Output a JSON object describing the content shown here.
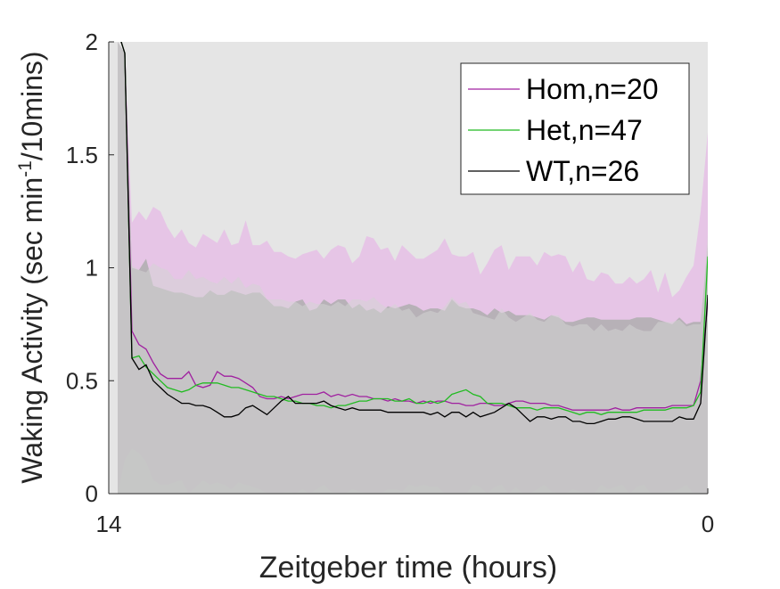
{
  "chart_data": {
    "type": "line",
    "title": "",
    "xlabel": "Zeitgeber time (hours)",
    "ylabel_main": "Waking Activity (sec min",
    "ylabel_sup": "-1",
    "ylabel_tail": "/10mins)",
    "x_tick_labels": [
      "14",
      "0"
    ],
    "y_ticks": [
      0,
      0.5,
      1,
      1.5,
      2
    ],
    "y_tick_labels": [
      "0",
      "0.5",
      "1",
      "1.5",
      "2"
    ],
    "ylim": [
      0,
      2
    ],
    "x_points": 84,
    "grid": false,
    "background_color": "#e5e5e5",
    "legend_position": "top-right",
    "series": [
      {
        "name": "Hom,n=20",
        "color": "#a020a0",
        "band_color": "#e6c0e6",
        "values": [
          2.05,
          1.95,
          0.72,
          0.66,
          0.64,
          0.58,
          0.53,
          0.51,
          0.51,
          0.51,
          0.54,
          0.48,
          0.47,
          0.48,
          0.54,
          0.52,
          0.52,
          0.51,
          0.49,
          0.47,
          0.43,
          0.42,
          0.42,
          0.43,
          0.42,
          0.43,
          0.44,
          0.44,
          0.44,
          0.45,
          0.43,
          0.44,
          0.43,
          0.44,
          0.43,
          0.43,
          0.42,
          0.42,
          0.41,
          0.42,
          0.41,
          0.41,
          0.4,
          0.41,
          0.4,
          0.41,
          0.41,
          0.4,
          0.4,
          0.39,
          0.39,
          0.4,
          0.4,
          0.39,
          0.39,
          0.4,
          0.41,
          0.41,
          0.4,
          0.4,
          0.4,
          0.39,
          0.39,
          0.38,
          0.37,
          0.37,
          0.37,
          0.37,
          0.37,
          0.37,
          0.38,
          0.37,
          0.37,
          0.38,
          0.38,
          0.38,
          0.38,
          0.38,
          0.39,
          0.39,
          0.39,
          0.39,
          0.5,
          0.85
        ],
        "band_upper": [
          2.0,
          1.95,
          1.2,
          1.25,
          1.21,
          1.27,
          1.25,
          1.18,
          1.13,
          1.17,
          1.11,
          1.09,
          1.15,
          1.13,
          1.11,
          1.17,
          1.1,
          1.11,
          1.21,
          1.1,
          1.1,
          1.12,
          1.07,
          1.07,
          1.05,
          1.04,
          1.06,
          1.07,
          1.08,
          1.04,
          1.08,
          1.1,
          1.09,
          1.02,
          1.05,
          1.14,
          1.13,
          1.08,
          1.09,
          1.03,
          1.1,
          1.07,
          1.04,
          1.04,
          1.06,
          1.08,
          1.13,
          1.06,
          1.05,
          1.05,
          1.07,
          0.97,
          1.02,
          1.08,
          1.1,
          0.99,
          1.05,
          1.05,
          1.05,
          1.01,
          1.07,
          1.05,
          1.06,
          1.05,
          0.98,
          1.03,
          0.95,
          0.94,
          0.98,
          0.97,
          0.93,
          0.93,
          0.96,
          0.93,
          0.95,
          0.99,
          0.89,
          0.98,
          0.87,
          0.9,
          0.96,
          1.01,
          1.25,
          1.6
        ],
        "band_lower": [
          0.0,
          0.15,
          0.2,
          0.18,
          0.14,
          0.06,
          0.04,
          0.04,
          0.05,
          0.06,
          0.0,
          0.03,
          0.06,
          0.04,
          0.05,
          0.04,
          0.02,
          0.05,
          0.04,
          0.03,
          0.02,
          0.0,
          0.0,
          0.0,
          0.01,
          0.0,
          0.02,
          0.0,
          0.02,
          0.04,
          0.01,
          0.0,
          0.0,
          0.02,
          0.01,
          0.0,
          0.0,
          0.0,
          0.02,
          0.02,
          0.01,
          0.04,
          0.03,
          0.04,
          0.03,
          0.03,
          0.0,
          0.0,
          0.0,
          0.0,
          0.04,
          0.03,
          0.0,
          0.03,
          0.04,
          0.0,
          0.03,
          0.0,
          0.0,
          0.02,
          0.04,
          0.01,
          0.0,
          0.0,
          0.02,
          0.01,
          0.0,
          0.0,
          0.04,
          0.02,
          0.03,
          0.04,
          0.0,
          0.03,
          0.04,
          0.0,
          0.0,
          0.01,
          0.01,
          0.02,
          0.04,
          0.0,
          0.0,
          0.0
        ]
      },
      {
        "name": "Het,n=47",
        "color": "#22bb22",
        "band_color": "#d3d3d3",
        "values": [
          2.05,
          1.95,
          0.6,
          0.61,
          0.56,
          0.53,
          0.5,
          0.47,
          0.46,
          0.45,
          0.46,
          0.48,
          0.49,
          0.49,
          0.49,
          0.48,
          0.47,
          0.47,
          0.46,
          0.45,
          0.44,
          0.43,
          0.43,
          0.42,
          0.41,
          0.41,
          0.4,
          0.4,
          0.39,
          0.39,
          0.38,
          0.39,
          0.39,
          0.4,
          0.41,
          0.41,
          0.42,
          0.42,
          0.42,
          0.41,
          0.41,
          0.42,
          0.4,
          0.4,
          0.41,
          0.4,
          0.41,
          0.44,
          0.45,
          0.46,
          0.44,
          0.43,
          0.4,
          0.4,
          0.4,
          0.39,
          0.38,
          0.38,
          0.38,
          0.37,
          0.38,
          0.38,
          0.38,
          0.37,
          0.36,
          0.35,
          0.36,
          0.36,
          0.35,
          0.36,
          0.36,
          0.36,
          0.36,
          0.36,
          0.37,
          0.37,
          0.37,
          0.37,
          0.38,
          0.38,
          0.38,
          0.39,
          0.45,
          1.05
        ],
        "band_upper": [
          2.0,
          1.95,
          1.01,
          0.99,
          0.98,
          1.02,
          1.0,
          0.99,
          0.95,
          0.95,
          0.99,
          0.95,
          0.96,
          0.94,
          0.93,
          0.96,
          0.93,
          0.96,
          0.91,
          0.93,
          0.92,
          0.86,
          0.86,
          0.86,
          0.85,
          0.85,
          0.83,
          0.85,
          0.84,
          0.84,
          0.83,
          0.85,
          0.83,
          0.86,
          0.86,
          0.85,
          0.87,
          0.84,
          0.82,
          0.84,
          0.81,
          0.82,
          0.78,
          0.8,
          0.81,
          0.8,
          0.83,
          0.87,
          0.84,
          0.85,
          0.8,
          0.79,
          0.78,
          0.77,
          0.82,
          0.78,
          0.76,
          0.78,
          0.8,
          0.77,
          0.76,
          0.79,
          0.79,
          0.75,
          0.74,
          0.75,
          0.75,
          0.72,
          0.75,
          0.72,
          0.73,
          0.72,
          0.75,
          0.73,
          0.72,
          0.72,
          0.76,
          0.76,
          0.76,
          0.77,
          0.74,
          0.75,
          0.75,
          1.15
        ],
        "band_lower": [
          0.0,
          0.0,
          0.0,
          0.0,
          0.0,
          0.0,
          0.0,
          0.0,
          0.0,
          0.0,
          0.0,
          0.0,
          0.0,
          0.0,
          0.0,
          0.0,
          0.0,
          0.0,
          0.0,
          0.0,
          0.0,
          0.0,
          0.0,
          0.0,
          0.0,
          0.0,
          0.0,
          0.0,
          0.0,
          0.0,
          0.0,
          0.0,
          0.0,
          0.0,
          0.0,
          0.0,
          0.0,
          0.0,
          0.0,
          0.0,
          0.0,
          0.0,
          0.0,
          0.0,
          0.0,
          0.0,
          0.0,
          0.0,
          0.0,
          0.0,
          0.0,
          0.0,
          0.0,
          0.0,
          0.0,
          0.0,
          0.0,
          0.0,
          0.0,
          0.0,
          0.0,
          0.0,
          0.0,
          0.0,
          0.0,
          0.0,
          0.0,
          0.0,
          0.0,
          0.0,
          0.0,
          0.0,
          0.0,
          0.0,
          0.0,
          0.0,
          0.0,
          0.0,
          0.0,
          0.0,
          0.0,
          0.0,
          0.0,
          0.0
        ]
      },
      {
        "name": "WT,n=26",
        "color": "#000000",
        "band_color": "#a7aaa7",
        "values": [
          2.05,
          1.95,
          0.6,
          0.55,
          0.57,
          0.5,
          0.47,
          0.44,
          0.42,
          0.4,
          0.4,
          0.39,
          0.39,
          0.38,
          0.36,
          0.34,
          0.34,
          0.35,
          0.38,
          0.39,
          0.37,
          0.35,
          0.38,
          0.41,
          0.43,
          0.4,
          0.4,
          0.4,
          0.4,
          0.41,
          0.39,
          0.38,
          0.37,
          0.38,
          0.37,
          0.37,
          0.37,
          0.37,
          0.36,
          0.36,
          0.36,
          0.36,
          0.36,
          0.36,
          0.35,
          0.36,
          0.34,
          0.36,
          0.36,
          0.34,
          0.36,
          0.34,
          0.35,
          0.36,
          0.38,
          0.4,
          0.38,
          0.35,
          0.32,
          0.34,
          0.34,
          0.33,
          0.34,
          0.34,
          0.32,
          0.32,
          0.31,
          0.31,
          0.32,
          0.33,
          0.33,
          0.34,
          0.34,
          0.33,
          0.32,
          0.32,
          0.32,
          0.32,
          0.32,
          0.34,
          0.33,
          0.33,
          0.4,
          0.88
        ],
        "band_upper": [
          2.0,
          1.95,
          1.0,
          0.99,
          1.04,
          0.92,
          0.91,
          0.9,
          0.89,
          0.89,
          0.88,
          0.87,
          0.87,
          0.9,
          0.88,
          0.88,
          0.9,
          0.89,
          0.88,
          0.89,
          0.89,
          0.86,
          0.83,
          0.83,
          0.82,
          0.85,
          0.86,
          0.81,
          0.82,
          0.86,
          0.84,
          0.86,
          0.86,
          0.82,
          0.84,
          0.81,
          0.82,
          0.8,
          0.83,
          0.82,
          0.83,
          0.84,
          0.83,
          0.81,
          0.82,
          0.82,
          0.81,
          0.86,
          0.83,
          0.82,
          0.82,
          0.81,
          0.79,
          0.82,
          0.8,
          0.81,
          0.79,
          0.79,
          0.79,
          0.78,
          0.77,
          0.79,
          0.78,
          0.76,
          0.76,
          0.77,
          0.78,
          0.78,
          0.77,
          0.77,
          0.77,
          0.77,
          0.77,
          0.78,
          0.78,
          0.78,
          0.77,
          0.76,
          0.75,
          0.78,
          0.75,
          0.76,
          0.76,
          1.1
        ],
        "band_lower": [
          0.0,
          0.0,
          0.0,
          0.0,
          0.0,
          0.0,
          0.0,
          0.0,
          0.0,
          0.0,
          0.0,
          0.0,
          0.0,
          0.0,
          0.0,
          0.0,
          0.0,
          0.0,
          0.0,
          0.0,
          0.0,
          0.0,
          0.0,
          0.0,
          0.0,
          0.0,
          0.0,
          0.0,
          0.0,
          0.0,
          0.0,
          0.0,
          0.0,
          0.0,
          0.0,
          0.0,
          0.0,
          0.0,
          0.0,
          0.0,
          0.0,
          0.0,
          0.0,
          0.0,
          0.0,
          0.0,
          0.0,
          0.0,
          0.0,
          0.0,
          0.0,
          0.0,
          0.0,
          0.0,
          0.0,
          0.0,
          0.0,
          0.0,
          0.0,
          0.0,
          0.0,
          0.0,
          0.0,
          0.0,
          0.0,
          0.0,
          0.0,
          0.0,
          0.0,
          0.0,
          0.0,
          0.0,
          0.0,
          0.0,
          0.0,
          0.0,
          0.0,
          0.0,
          0.0,
          0.0,
          0.0,
          0.0,
          0.0,
          0.0
        ]
      }
    ]
  }
}
